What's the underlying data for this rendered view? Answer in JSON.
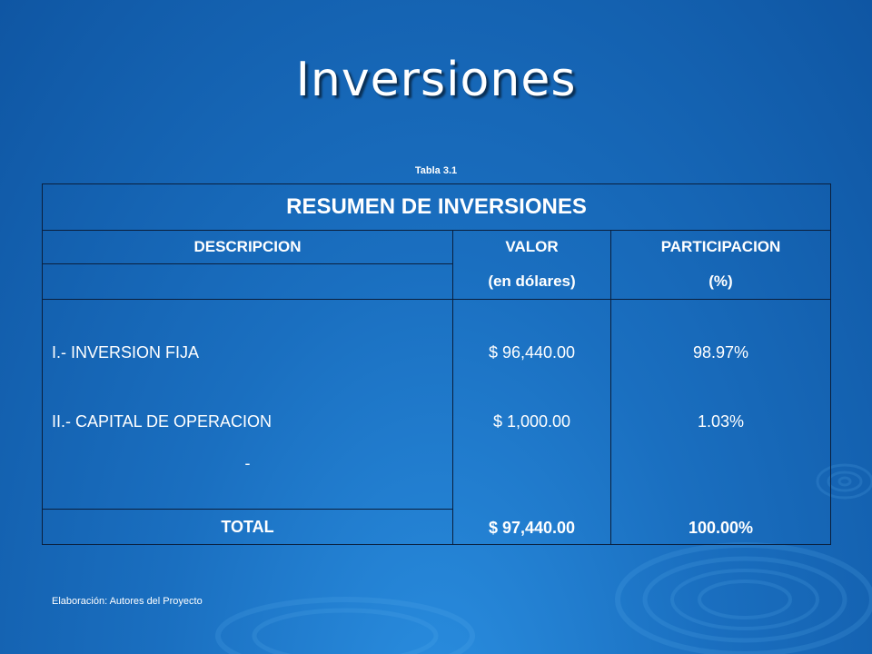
{
  "slide": {
    "title": "Inversiones",
    "caption": "Tabla 3.1",
    "footer": "Elaboración: Autores del Proyecto"
  },
  "table": {
    "heading": "RESUMEN DE INVERSIONES",
    "columns": {
      "description": "DESCRIPCION",
      "value": "VALOR",
      "value_unit": "(en dólares)",
      "participation": "PARTICIPACION",
      "participation_unit": "(%)"
    },
    "rows": [
      {
        "description": "I.- INVERSION FIJA",
        "value": "$ 96,440.00",
        "participation": "98.97%"
      },
      {
        "description": "II.- CAPITAL DE OPERACION",
        "value": "$ 1,000.00",
        "participation": "1.03%"
      }
    ],
    "dash": "-",
    "total": {
      "label": "TOTAL",
      "value": "$ 97,440.00",
      "participation": "100.00%"
    }
  },
  "colors": {
    "background": "#1a6fc0",
    "text": "#ffffff",
    "border": "#0a1f3d"
  }
}
